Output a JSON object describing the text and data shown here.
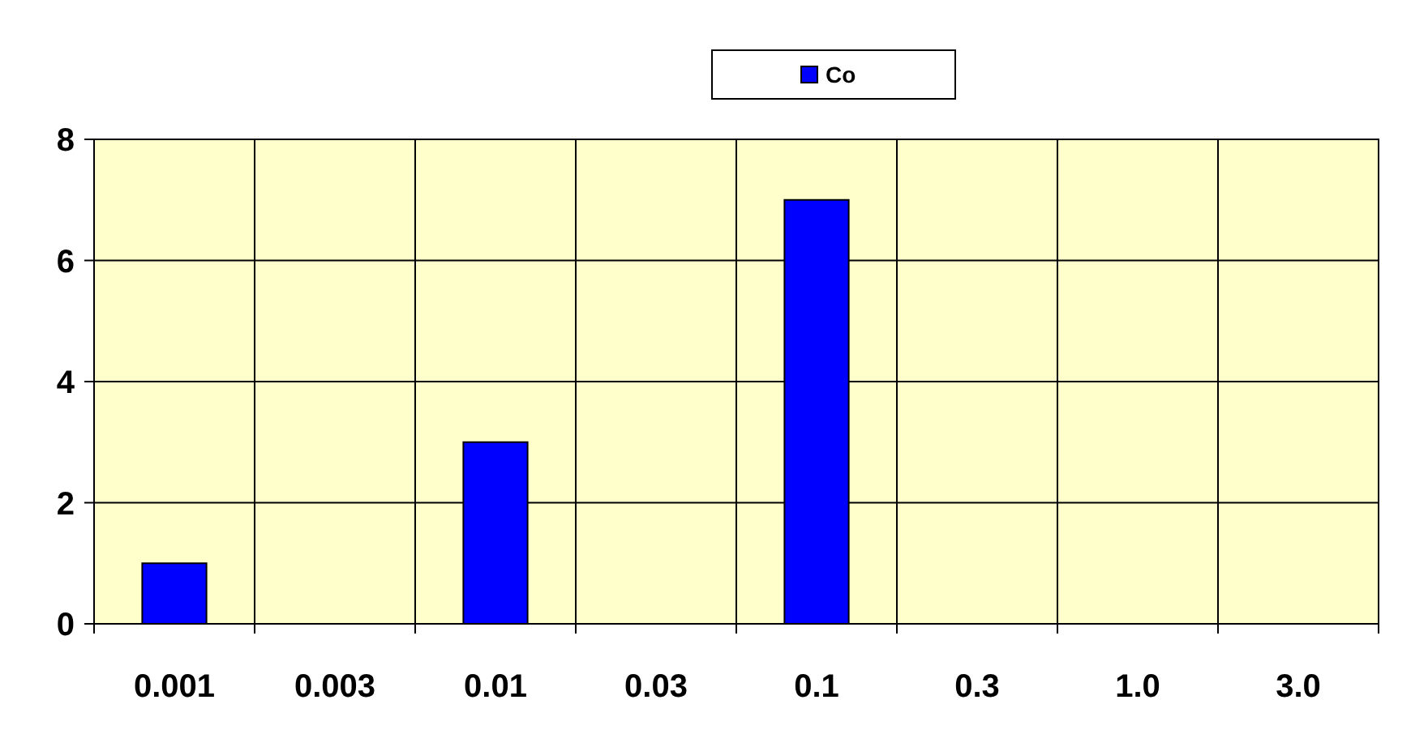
{
  "chart_data": {
    "type": "bar",
    "categories": [
      "0.001",
      "0.003",
      "0.01",
      "0.03",
      "0.1",
      "0.3",
      "1.0",
      "3.0"
    ],
    "series": [
      {
        "name": "Co",
        "color": "#0000ff",
        "values": [
          1,
          0,
          3,
          0,
          7,
          0,
          0,
          0
        ]
      }
    ],
    "ylim": [
      0,
      8
    ],
    "yticks": [
      0,
      2,
      4,
      6,
      8
    ],
    "grid": true,
    "legend": "top"
  }
}
